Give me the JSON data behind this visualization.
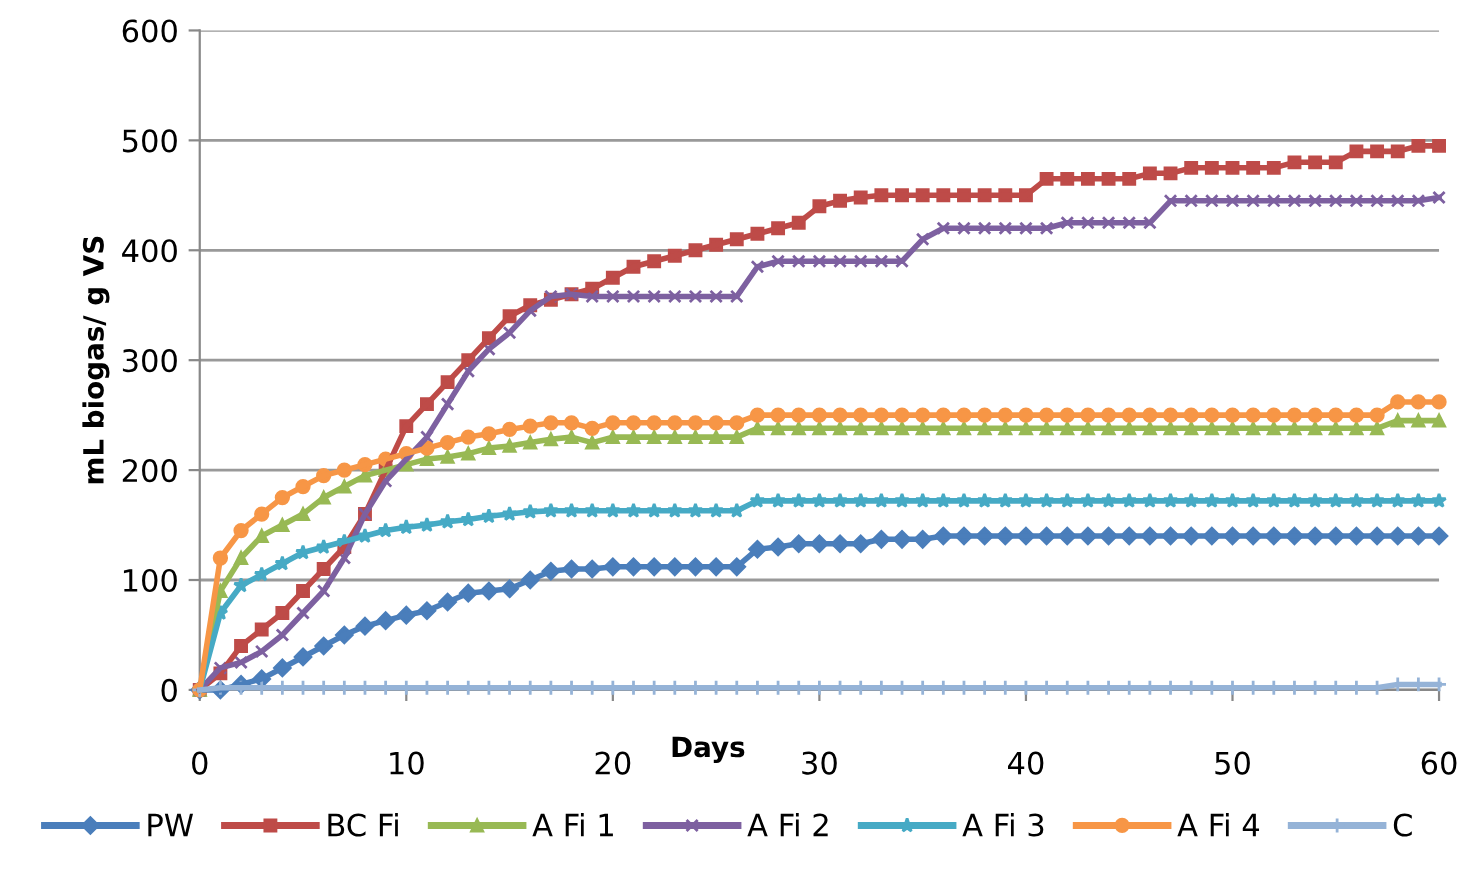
{
  "chart_data": {
    "type": "line",
    "xlabel": "Days",
    "ylabel": "mL biogas/ g VS",
    "x": [
      0,
      1,
      2,
      3,
      4,
      5,
      6,
      7,
      8,
      9,
      10,
      11,
      12,
      13,
      14,
      15,
      16,
      17,
      18,
      19,
      20,
      21,
      22,
      23,
      24,
      25,
      26,
      27,
      28,
      29,
      30,
      31,
      32,
      33,
      34,
      35,
      36,
      37,
      38,
      39,
      40,
      41,
      42,
      43,
      44,
      45,
      46,
      47,
      48,
      49,
      50,
      51,
      52,
      53,
      54,
      55,
      56,
      57,
      58,
      59,
      60
    ],
    "xlim": [
      0,
      60
    ],
    "xticks": [
      0,
      10,
      20,
      30,
      40,
      50,
      60
    ],
    "ylim": [
      0,
      600
    ],
    "yticks": [
      0,
      100,
      200,
      300,
      400,
      500,
      600
    ],
    "grid": "y",
    "legend": "bottom",
    "series": [
      {
        "name": "PW",
        "color": "#4a7ebb",
        "marker": "diamond",
        "values": [
          0,
          0,
          5,
          10,
          20,
          30,
          40,
          50,
          58,
          63,
          68,
          72,
          80,
          88,
          90,
          92,
          100,
          108,
          110,
          110,
          112,
          112,
          112,
          112,
          112,
          112,
          112,
          128,
          130,
          133,
          133,
          133,
          133,
          137,
          137,
          137,
          140,
          140,
          140,
          140,
          140,
          140,
          140,
          140,
          140,
          140,
          140,
          140,
          140,
          140,
          140,
          140,
          140,
          140,
          140,
          140,
          140,
          140,
          140,
          140,
          140
        ]
      },
      {
        "name": "BC Fi",
        "color": "#be4b48",
        "marker": "square",
        "values": [
          0,
          15,
          40,
          55,
          70,
          90,
          110,
          130,
          160,
          200,
          240,
          260,
          280,
          300,
          320,
          340,
          350,
          355,
          360,
          365,
          375,
          385,
          390,
          395,
          400,
          405,
          410,
          415,
          420,
          425,
          440,
          445,
          448,
          450,
          450,
          450,
          450,
          450,
          450,
          450,
          450,
          465,
          465,
          465,
          465,
          465,
          470,
          470,
          475,
          475,
          475,
          475,
          475,
          480,
          480,
          480,
          490,
          490,
          490,
          495,
          495
        ]
      },
      {
        "name": "A Fi 1",
        "color": "#98b954",
        "marker": "triangle",
        "values": [
          0,
          90,
          120,
          140,
          150,
          160,
          175,
          185,
          195,
          200,
          205,
          210,
          212,
          215,
          220,
          222,
          225,
          228,
          230,
          225,
          230,
          230,
          230,
          230,
          230,
          230,
          230,
          238,
          238,
          238,
          238,
          238,
          238,
          238,
          238,
          238,
          238,
          238,
          238,
          238,
          238,
          238,
          238,
          238,
          238,
          238,
          238,
          238,
          238,
          238,
          238,
          238,
          238,
          238,
          238,
          238,
          238,
          238,
          245,
          245,
          245
        ]
      },
      {
        "name": "A Fi 2",
        "color": "#7d60a0",
        "marker": "cross",
        "values": [
          0,
          20,
          25,
          35,
          50,
          70,
          90,
          120,
          160,
          190,
          210,
          230,
          260,
          290,
          310,
          325,
          345,
          358,
          360,
          358,
          358,
          358,
          358,
          358,
          358,
          358,
          358,
          385,
          390,
          390,
          390,
          390,
          390,
          390,
          390,
          410,
          420,
          420,
          420,
          420,
          420,
          420,
          425,
          425,
          425,
          425,
          425,
          445,
          445,
          445,
          445,
          445,
          445,
          445,
          445,
          445,
          445,
          445,
          445,
          445,
          448
        ]
      },
      {
        "name": "A Fi 3",
        "color": "#46aac5",
        "marker": "star",
        "values": [
          0,
          70,
          95,
          105,
          115,
          125,
          130,
          135,
          140,
          145,
          148,
          150,
          153,
          155,
          158,
          160,
          162,
          163,
          163,
          163,
          163,
          163,
          163,
          163,
          163,
          163,
          163,
          172,
          172,
          172,
          172,
          172,
          172,
          172,
          172,
          172,
          172,
          172,
          172,
          172,
          172,
          172,
          172,
          172,
          172,
          172,
          172,
          172,
          172,
          172,
          172,
          172,
          172,
          172,
          172,
          172,
          172,
          172,
          172,
          172,
          172
        ]
      },
      {
        "name": "A Fi 4",
        "color": "#f79646",
        "marker": "circle",
        "values": [
          0,
          120,
          145,
          160,
          175,
          185,
          195,
          200,
          205,
          210,
          215,
          220,
          225,
          230,
          233,
          237,
          240,
          243,
          243,
          238,
          243,
          243,
          243,
          243,
          243,
          243,
          243,
          250,
          250,
          250,
          250,
          250,
          250,
          250,
          250,
          250,
          250,
          250,
          250,
          250,
          250,
          250,
          250,
          250,
          250,
          250,
          250,
          250,
          250,
          250,
          250,
          250,
          250,
          250,
          250,
          250,
          250,
          250,
          262,
          262,
          262
        ]
      },
      {
        "name": "C",
        "color": "#95b3d7",
        "marker": "plus",
        "values": [
          0,
          2,
          2,
          2,
          2,
          2,
          2,
          2,
          2,
          2,
          2,
          2,
          2,
          2,
          2,
          2,
          2,
          2,
          2,
          2,
          2,
          2,
          2,
          2,
          2,
          2,
          2,
          2,
          2,
          2,
          2,
          2,
          2,
          2,
          2,
          2,
          2,
          2,
          2,
          2,
          2,
          2,
          2,
          2,
          2,
          2,
          2,
          2,
          2,
          2,
          2,
          2,
          2,
          2,
          2,
          2,
          2,
          2,
          5,
          5,
          5
        ]
      }
    ]
  }
}
